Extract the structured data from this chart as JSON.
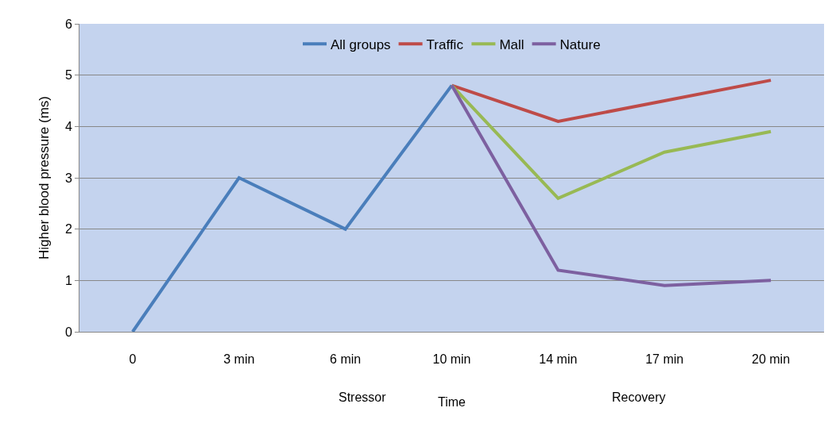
{
  "chart_data": {
    "type": "line",
    "xlabel": "Time",
    "ylabel": "Higher blood pressure (ms)",
    "categories": [
      "0",
      "3 min",
      "6 min",
      "10 min",
      "14 min",
      "17 min",
      "20 min"
    ],
    "series": [
      {
        "name": "All groups",
        "color": "#4a7ebb",
        "values": [
          0,
          3,
          2,
          4.8,
          null,
          null,
          null
        ]
      },
      {
        "name": "Traffic",
        "color": "#be4b48",
        "values": [
          null,
          null,
          null,
          4.8,
          4.1,
          4.5,
          4.9
        ]
      },
      {
        "name": "Mall",
        "color": "#98b954",
        "values": [
          null,
          null,
          null,
          4.8,
          2.6,
          3.5,
          3.9
        ]
      },
      {
        "name": "Nature",
        "color": "#7d60a0",
        "values": [
          null,
          null,
          null,
          4.8,
          1.2,
          0.9,
          1.0
        ]
      }
    ],
    "annotations": [
      "Stressor",
      "Recovery"
    ],
    "ylim": [
      0,
      6
    ],
    "yticks": [
      0,
      1,
      2,
      3,
      4,
      5,
      6
    ],
    "grid": "y",
    "legend": "top",
    "marker": "none",
    "line_style": "solid"
  }
}
